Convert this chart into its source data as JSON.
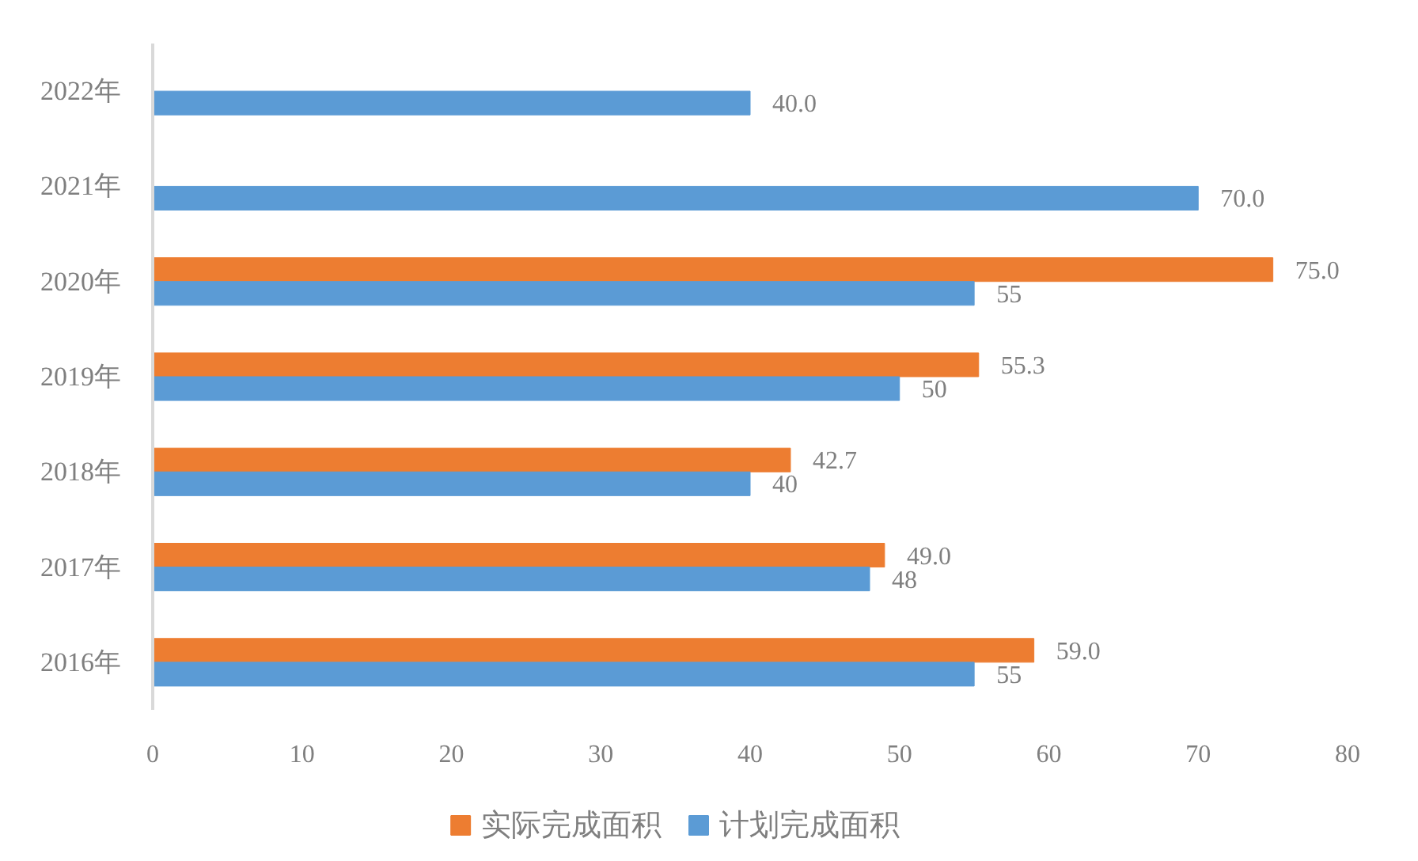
{
  "chart_data": {
    "type": "bar",
    "orientation": "horizontal",
    "categories": [
      "2022年",
      "2021年",
      "2020年",
      "2019年",
      "2018年",
      "2017年",
      "2016年"
    ],
    "series": [
      {
        "name": "实际完成面积",
        "color": "#ed7d31",
        "values": [
          null,
          null,
          75.0,
          55.3,
          42.7,
          49.0,
          59.0
        ],
        "value_labels": [
          null,
          null,
          "75.0",
          "55.3",
          "42.7",
          "49.0",
          "59.0"
        ]
      },
      {
        "name": "计划完成面积",
        "color": "#5b9bd5",
        "values": [
          40,
          70,
          55,
          50,
          40,
          48,
          55
        ],
        "value_labels": [
          "40.0",
          "70.0",
          "55",
          "50",
          "40",
          "48",
          "55"
        ]
      }
    ],
    "xlim": [
      0,
      80
    ],
    "xticks": [
      0,
      10,
      20,
      30,
      40,
      50,
      60,
      70,
      80
    ],
    "grid": false,
    "legend": "bottom"
  }
}
